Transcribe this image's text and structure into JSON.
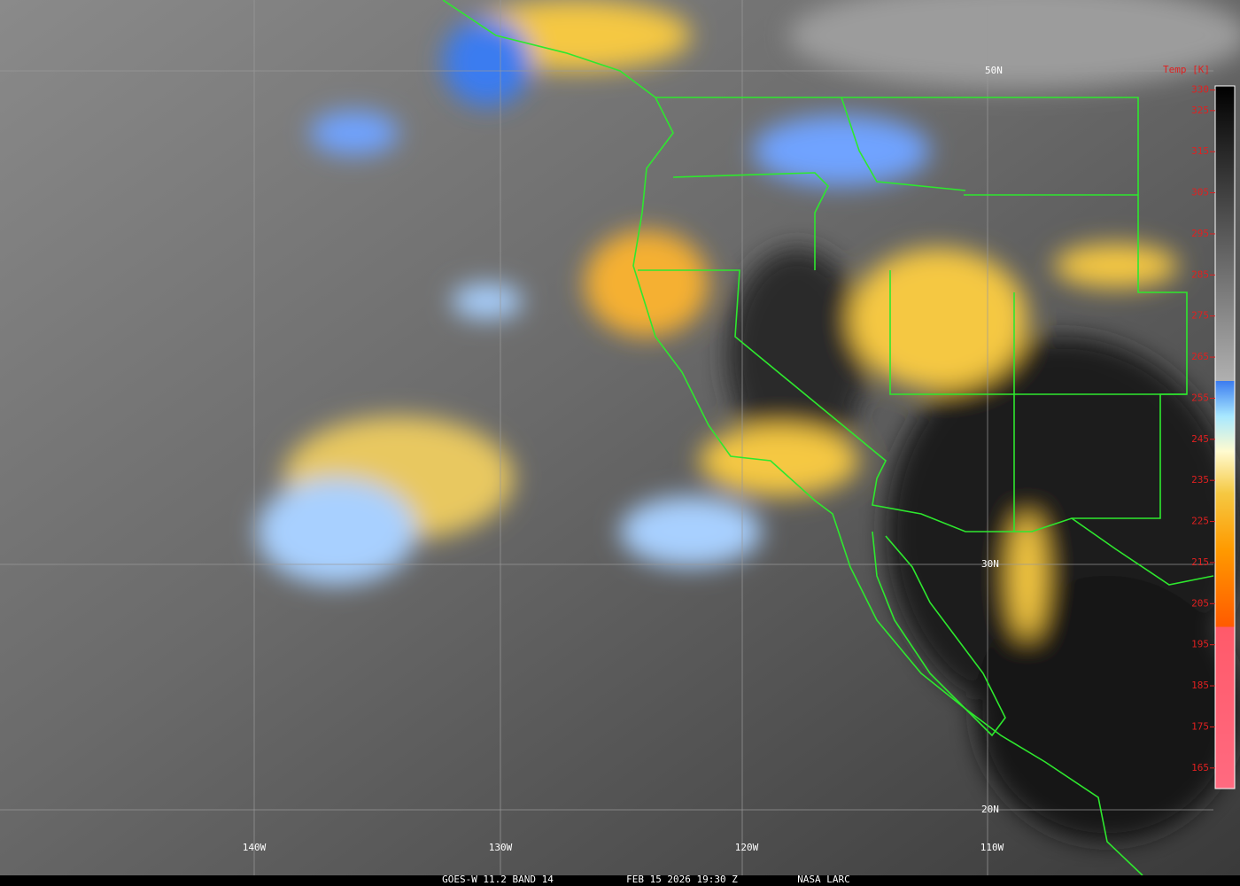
{
  "map": {
    "grid_labels": {
      "latitudes": [
        "50N",
        "30N",
        "20N"
      ],
      "longitudes": [
        "140W",
        "130W",
        "120W",
        "110W"
      ]
    },
    "colorbar": {
      "title": "Temp [K]",
      "lim": [
        160,
        331
      ],
      "ticks": [
        330,
        325,
        315,
        305,
        295,
        285,
        275,
        265,
        255,
        245,
        235,
        225,
        215,
        205,
        195,
        185,
        175,
        165
      ]
    },
    "footer": {
      "satellite": "GOES-W 11.2 BAND 14",
      "time": "FEB 15 2026 19:30 Z",
      "source": "NASA LARC"
    }
  }
}
